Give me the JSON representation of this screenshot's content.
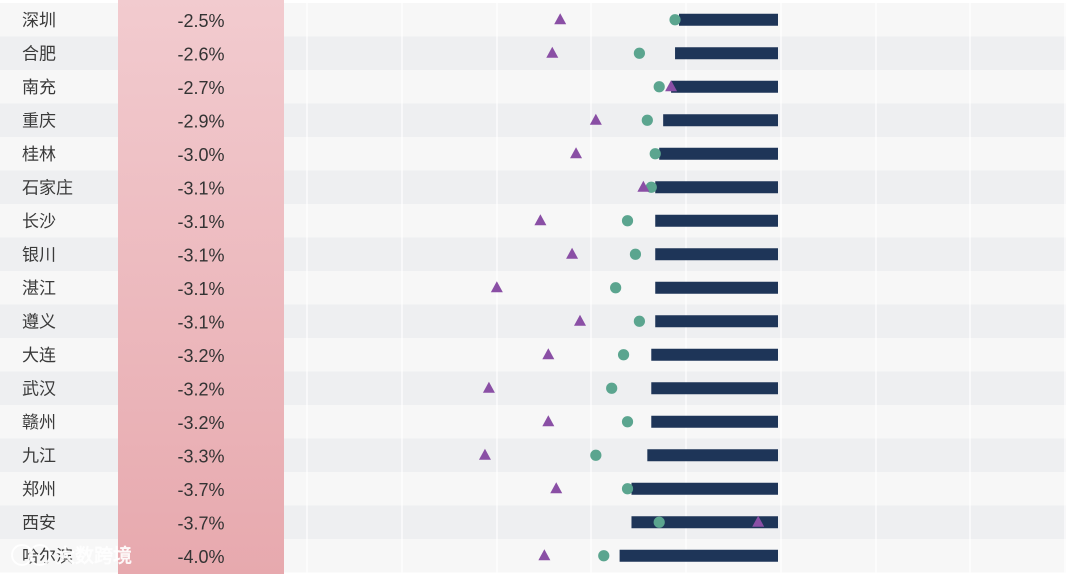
{
  "chart_data": {
    "type": "bar",
    "categories": [
      "深圳",
      "合肥",
      "南充",
      "重庆",
      "桂林",
      "石家庄",
      "长沙",
      "银川",
      "湛江",
      "遵义",
      "大连",
      "武汉",
      "赣州",
      "九江",
      "郑州",
      "西安",
      "哈尔滨"
    ],
    "labels": [
      "-2.5%",
      "-2.6%",
      "-2.7%",
      "-2.9%",
      "-3.0%",
      "-3.1%",
      "-3.1%",
      "-3.1%",
      "-3.1%",
      "-3.1%",
      "-3.2%",
      "-3.2%",
      "-3.2%",
      "-3.3%",
      "-3.7%",
      "-3.7%",
      "-4.0%"
    ],
    "series": [
      {
        "values": [
          -2.5,
          -2.6,
          -2.7,
          -2.9,
          -3.0,
          -3.1,
          -3.1,
          -3.1,
          -3.1,
          -3.1,
          -3.2,
          -3.2,
          -3.2,
          -3.3,
          -3.7,
          -3.7,
          -4.0
        ]
      },
      {
        "values": [
          -2.6,
          -3.5,
          -3.0,
          -3.3,
          -3.1,
          -3.2,
          -3.8,
          -3.6,
          -4.1,
          -3.5,
          -3.9,
          -4.2,
          -3.8,
          -4.6,
          -3.8,
          -3.0,
          -4.4
        ]
      },
      {
        "values": [
          -5.5,
          -5.7,
          -2.7,
          -4.6,
          -5.1,
          -3.4,
          -6.0,
          -5.2,
          -7.1,
          -5.0,
          -5.8,
          -7.3,
          -5.8,
          -7.4,
          -5.6,
          -0.5,
          -5.9
        ]
      }
    ],
    "colors": {
      "bar": "#1e3558",
      "circle": "#5ba58f",
      "triangle": "#8a4fa5",
      "label_band": "#eeb9bd"
    }
  },
  "watermark": "大数跨境"
}
